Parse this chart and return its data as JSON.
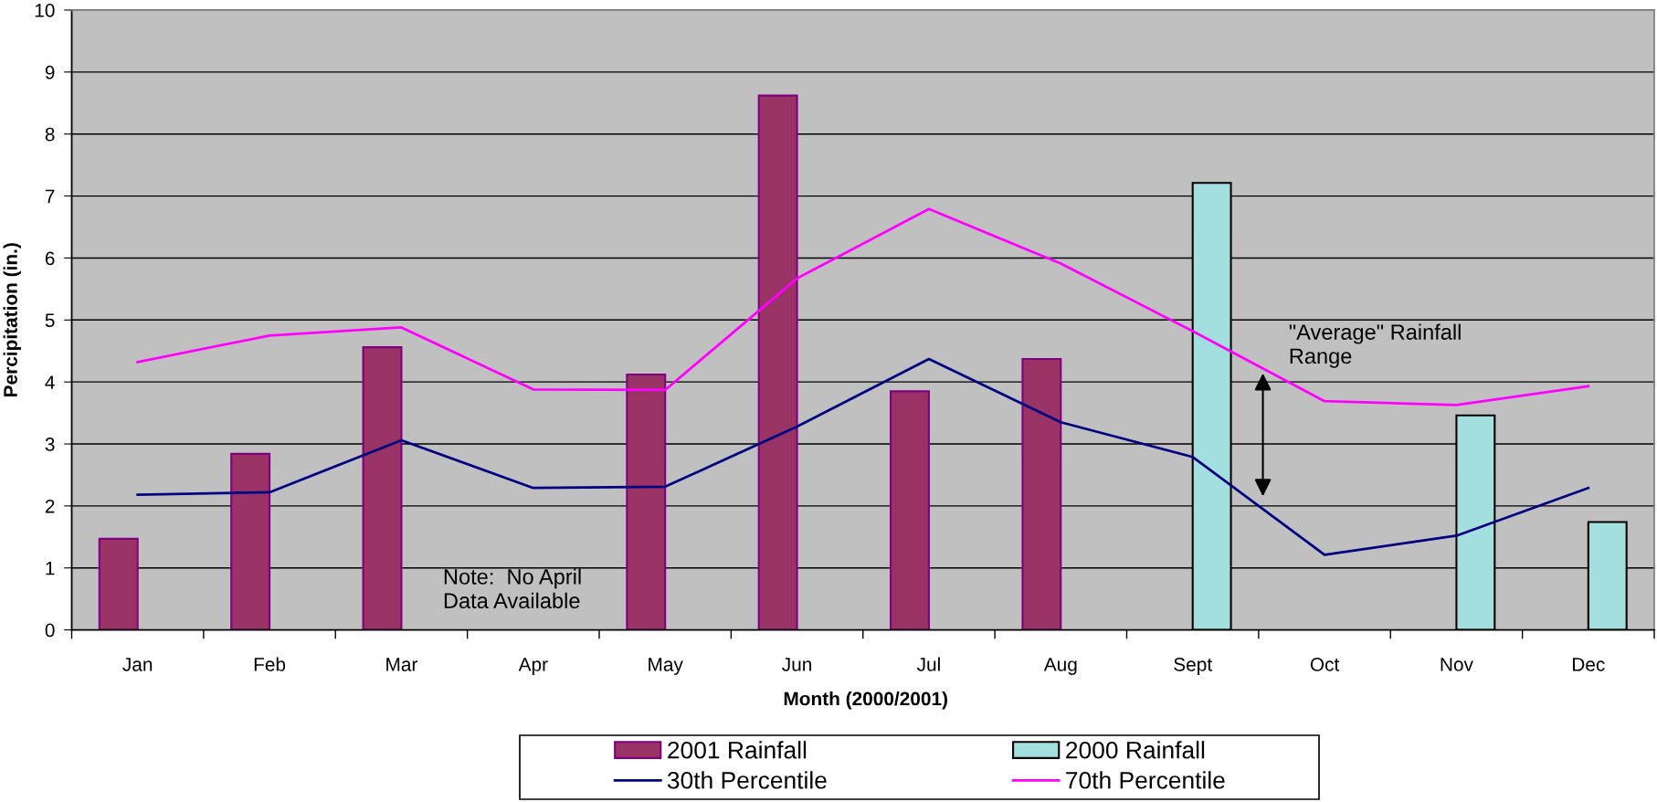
{
  "chart_data": {
    "type": "bar",
    "xlabel": "Month (2000/2001)",
    "ylabel": "Percipitation (in.)",
    "categories": [
      "Jan",
      "Feb",
      "Mar",
      "Apr",
      "May",
      "Jun",
      "Jul",
      "Aug",
      "Sept",
      "Oct",
      "Nov",
      "Dec"
    ],
    "series": [
      {
        "name": "2001 Rainfall",
        "color": "#993366",
        "values": [
          1.47,
          2.84,
          4.56,
          null,
          4.12,
          8.62,
          3.85,
          4.37,
          null,
          null,
          null,
          null
        ]
      },
      {
        "name": "2000 Rainfall",
        "color": "#a4dfe0",
        "values": [
          null,
          null,
          null,
          null,
          null,
          null,
          null,
          null,
          7.21,
          null,
          3.46,
          1.74
        ]
      },
      {
        "name": "30th Percentile",
        "type": "line",
        "color": "#000080",
        "values": [
          2.18,
          2.22,
          3.06,
          2.29,
          2.31,
          3.28,
          4.37,
          3.35,
          2.79,
          1.21,
          1.52,
          2.29
        ]
      },
      {
        "name": "70th Percentile",
        "type": "line",
        "color": "#ff00ff",
        "values": [
          4.32,
          4.75,
          4.88,
          3.88,
          3.87,
          5.67,
          6.79,
          5.91,
          4.82,
          3.69,
          3.63,
          3.93
        ]
      }
    ],
    "ylim": [
      0,
      10
    ],
    "yticks": [
      0,
      1,
      2,
      3,
      4,
      5,
      6,
      7,
      8,
      9,
      10
    ],
    "grid": "y",
    "legend": "bottom",
    "line_style": "solid",
    "annotations": [
      "Note:  No April\nData Available",
      "\"Average\" Rainfall\nRange"
    ]
  }
}
